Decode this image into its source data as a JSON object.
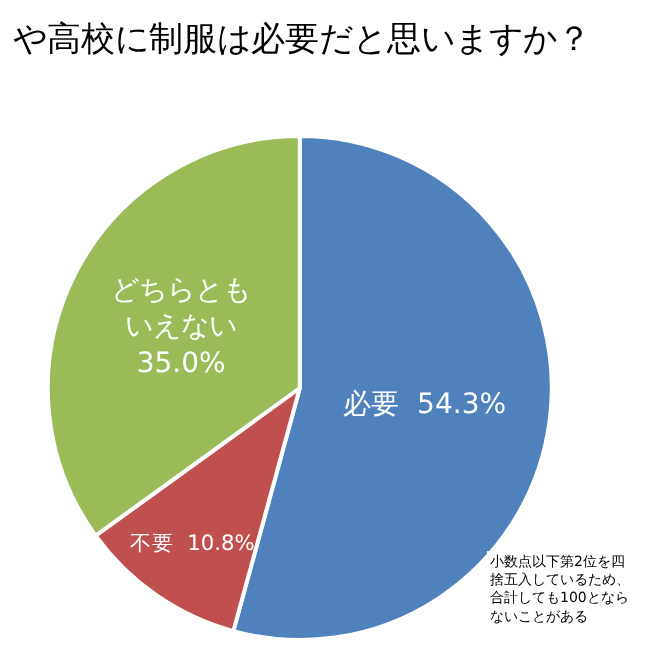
{
  "chart_data": {
    "type": "pie",
    "title": "や高校に制服は必要だと思いますか？",
    "categories": [
      "必要",
      "不要",
      "どちらともいえない"
    ],
    "values": [
      54.3,
      10.8,
      35.0
    ],
    "value_labels": [
      "54.3%",
      "10.8%",
      "35.0%"
    ],
    "colors": [
      "#4f81bd",
      "#c0504d",
      "#9bbb59"
    ],
    "legend": false,
    "annotations": [
      "小数点以下第2位を四捨五入しているため、合計しても100とならないことがある"
    ]
  }
}
